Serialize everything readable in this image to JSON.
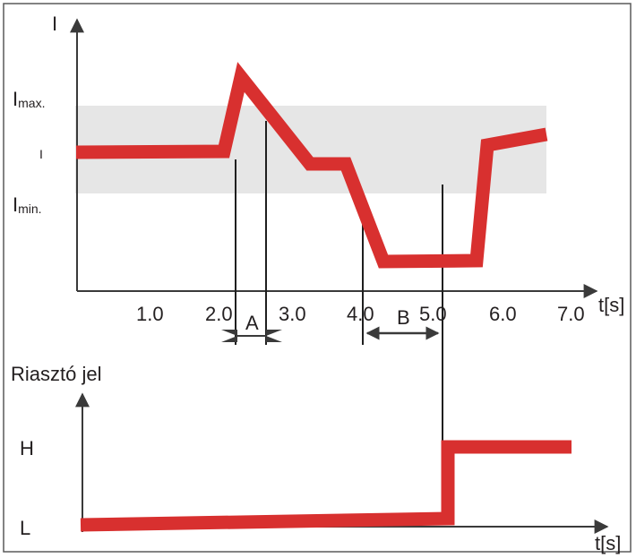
{
  "colors": {
    "signal": "#d8302f",
    "axis": "#3a3a3a",
    "band": "#e6e6e6",
    "frame": "#5a5a5a"
  },
  "top_chart": {
    "y_label": "I",
    "x_label": "t[s]",
    "level_labels": {
      "imax_main": "I",
      "imax_sub": "max.",
      "i": "I",
      "imin_main": "I",
      "imin_sub": "min."
    },
    "x_ticks": [
      "1.0",
      "2.0",
      "3.0",
      "4.0",
      "5.0",
      "6.0",
      "7.0"
    ],
    "interval_a_label": "A",
    "interval_b_label": "B"
  },
  "bottom_chart": {
    "y_label": "Riasztó jel",
    "x_label": "t[s]",
    "level_labels": {
      "high": "H",
      "low": "L"
    }
  }
}
